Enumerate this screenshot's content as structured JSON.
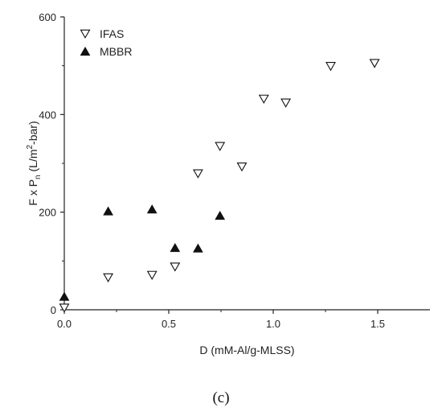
{
  "chart_data": {
    "type": "scatter",
    "title": "",
    "xlabel": "D (mM-Al/g-MLSS)",
    "ylabel_parts": {
      "pre": "F x P",
      "sub": "n",
      "mid": " (L/m",
      "sup": "2",
      "post": "-bar)"
    },
    "xlim": [
      0,
      1.75
    ],
    "ylim": [
      0,
      600
    ],
    "xticks": [
      0.0,
      0.5,
      1.0,
      1.5
    ],
    "xtick_labels": [
      "0.0",
      "0.5",
      "1.0",
      "1.5"
    ],
    "yticks": [
      0,
      200,
      400,
      600
    ],
    "ytick_labels": [
      "0",
      "200",
      "400",
      "600"
    ],
    "grid": false,
    "legend_position": "top-left",
    "series": [
      {
        "name": "IFAS",
        "marker": "open-triangle-down",
        "points": [
          [
            0.0,
            4
          ],
          [
            0.21,
            66
          ],
          [
            0.42,
            71
          ],
          [
            0.53,
            88
          ],
          [
            0.64,
            279
          ],
          [
            0.745,
            335
          ],
          [
            0.85,
            293
          ],
          [
            0.955,
            432
          ],
          [
            1.06,
            424
          ],
          [
            1.275,
            499
          ],
          [
            1.485,
            505
          ]
        ]
      },
      {
        "name": "MBBR",
        "marker": "filled-triangle-up",
        "points": [
          [
            0.0,
            27
          ],
          [
            0.21,
            202
          ],
          [
            0.42,
            206
          ],
          [
            0.53,
            127
          ],
          [
            0.64,
            126
          ],
          [
            0.745,
            193
          ]
        ]
      }
    ],
    "panel_label": "(c)"
  },
  "colors": {
    "axis": "#222222",
    "marker": "#111111",
    "background": "#ffffff"
  }
}
